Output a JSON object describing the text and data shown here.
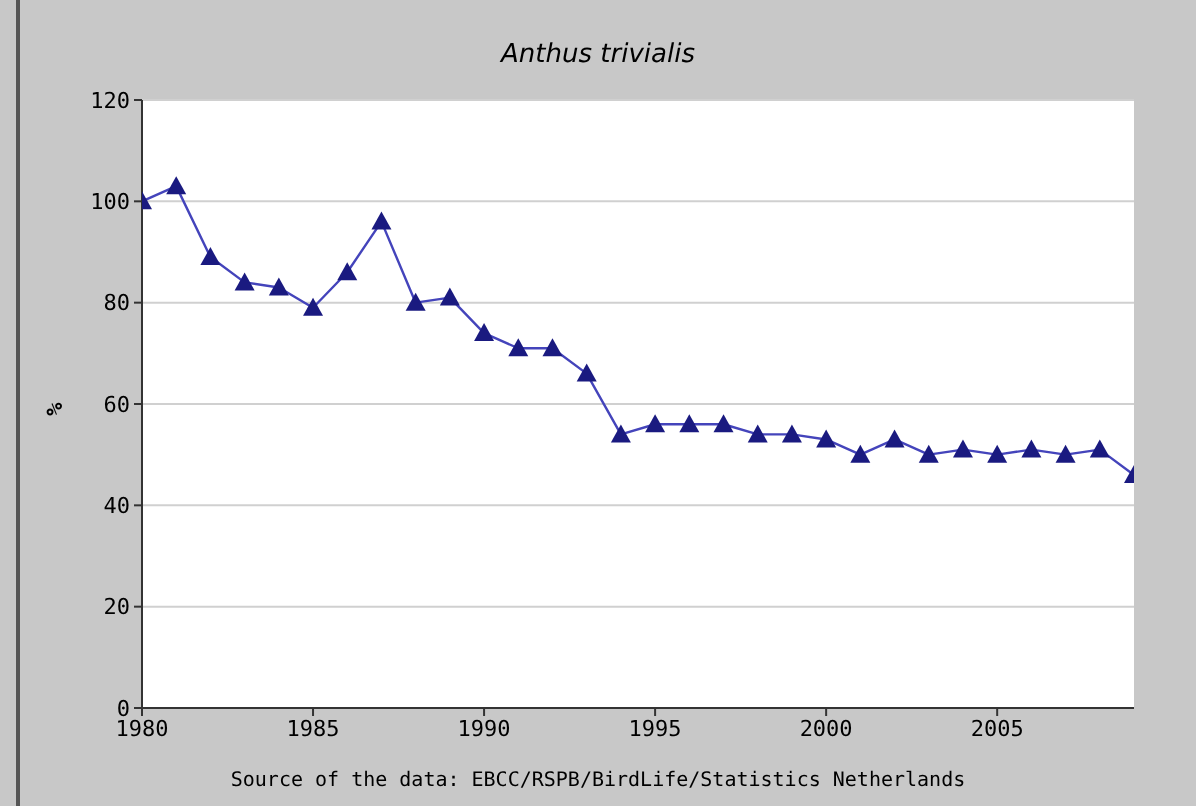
{
  "chart_data": {
    "type": "line",
    "title": "Anthus trivialis",
    "ylabel": "%",
    "x": [
      1980,
      1981,
      1982,
      1983,
      1984,
      1985,
      1986,
      1987,
      1988,
      1989,
      1990,
      1991,
      1992,
      1993,
      1994,
      1995,
      1996,
      1997,
      1998,
      1999,
      2000,
      2001,
      2002,
      2003,
      2004,
      2005,
      2006,
      2007,
      2008,
      2009
    ],
    "series": [
      {
        "color": "#1a1a80",
        "values": [
          100,
          103,
          89,
          84,
          83,
          79,
          86,
          96,
          80,
          81,
          74,
          71,
          71,
          66,
          54,
          56,
          56,
          56,
          54,
          54,
          53,
          50,
          53,
          50,
          51,
          50,
          51,
          50,
          51,
          46
        ]
      }
    ],
    "xlim": [
      1980,
      2009
    ],
    "xticks": [
      1980,
      1985,
      1990,
      1995,
      2000,
      2005
    ],
    "ylim": [
      0,
      120
    ],
    "yticks": [
      0,
      20,
      40,
      60,
      80,
      100,
      120
    ],
    "grid": "y",
    "marker": "triangle",
    "annotations": [
      "Source of the data: EBCC/RSPB/BirdLife/Statistics Netherlands"
    ]
  }
}
